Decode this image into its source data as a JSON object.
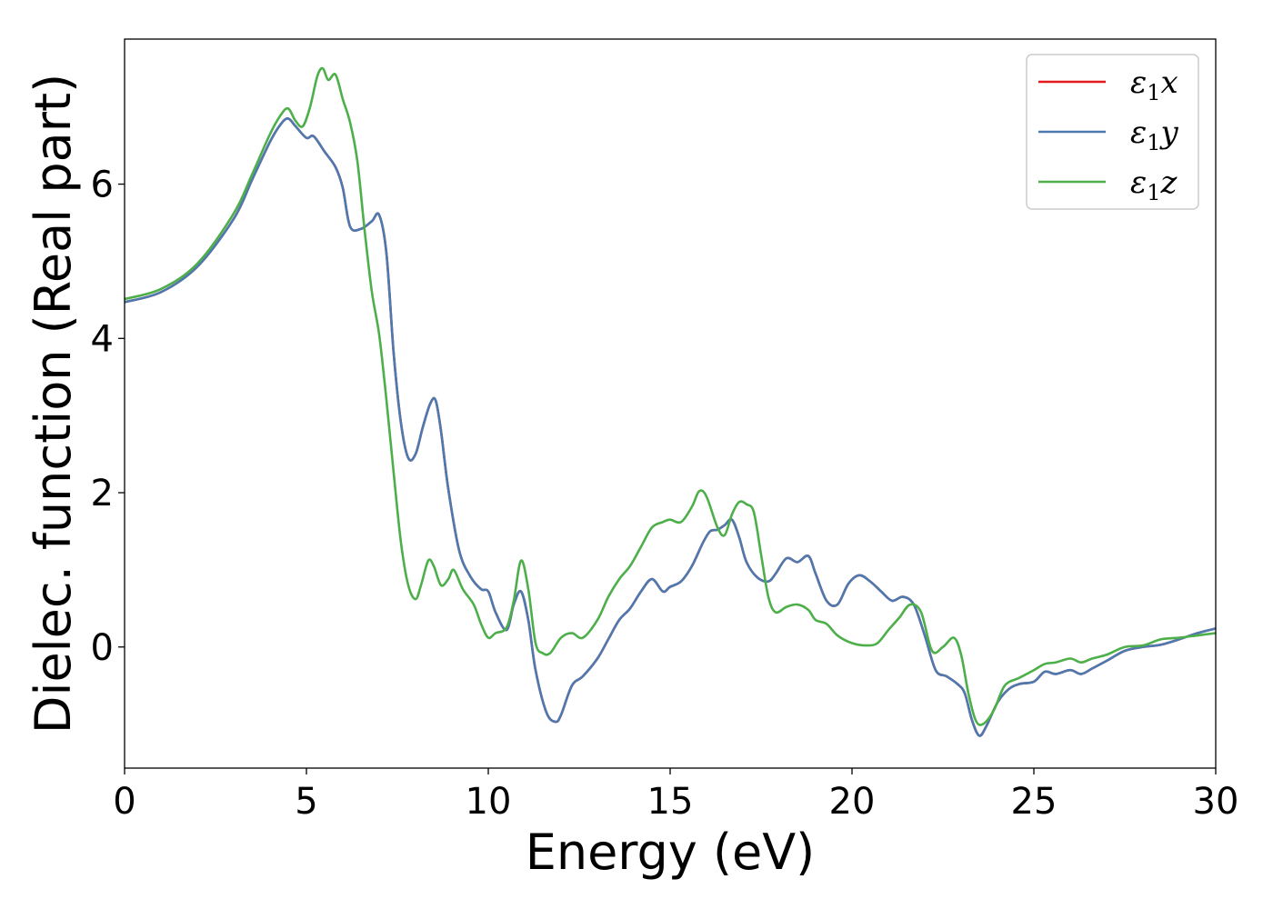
{
  "chart_data": {
    "type": "line",
    "xlabel": "Energy (eV)",
    "ylabel": "Dielec. function (Real part)",
    "xlim": [
      0,
      30
    ],
    "ylim": [
      -1.57,
      7.88
    ],
    "xticks": [
      0,
      5,
      10,
      15,
      20,
      25,
      30
    ],
    "yticks": [
      0,
      2,
      4,
      6
    ],
    "grid": false,
    "legend_position": "top-right",
    "series": [
      {
        "name": "ε1x",
        "legend_symbol": "ε",
        "legend_sub": "1",
        "legend_var": "x",
        "color": "#e41a1c",
        "x": [
          0,
          1,
          2,
          3,
          3.5,
          4,
          4.3,
          4.5,
          4.7,
          5.0,
          5.2,
          5.5,
          5.8,
          6.0,
          6.2,
          6.5,
          6.8,
          7.0,
          7.2,
          7.4,
          7.6,
          7.8,
          8.0,
          8.2,
          8.4,
          8.55,
          8.7,
          8.9,
          9.2,
          9.5,
          9.8,
          10.0,
          10.2,
          10.5,
          10.7,
          10.9,
          11.1,
          11.3,
          11.6,
          11.85,
          12.0,
          12.3,
          12.6,
          13.0,
          13.3,
          13.6,
          13.9,
          14.2,
          14.5,
          14.8,
          15.0,
          15.3,
          15.6,
          15.9,
          16.1,
          16.3,
          16.5,
          16.7,
          16.9,
          17.1,
          17.4,
          17.7,
          17.9,
          18.2,
          18.5,
          18.8,
          19.0,
          19.3,
          19.6,
          19.9,
          20.2,
          20.5,
          20.8,
          21.1,
          21.4,
          21.7,
          22.0,
          22.3,
          22.6,
          22.9,
          23.1,
          23.3,
          23.5,
          23.7,
          24.0,
          24.3,
          24.6,
          25.0,
          25.3,
          25.6,
          26.0,
          26.3,
          26.6,
          27.0,
          27.5,
          28.0,
          28.5,
          29.0,
          29.5,
          30.0
        ],
        "y": [
          4.47,
          4.6,
          4.93,
          5.55,
          6.05,
          6.55,
          6.78,
          6.85,
          6.75,
          6.6,
          6.62,
          6.42,
          6.22,
          5.95,
          5.45,
          5.42,
          5.52,
          5.6,
          5.1,
          3.8,
          2.9,
          2.45,
          2.5,
          2.85,
          3.15,
          3.2,
          2.8,
          2.05,
          1.25,
          0.92,
          0.75,
          0.72,
          0.45,
          0.22,
          0.55,
          0.72,
          0.35,
          -0.3,
          -0.85,
          -0.97,
          -0.88,
          -0.5,
          -0.38,
          -0.15,
          0.1,
          0.35,
          0.5,
          0.72,
          0.88,
          0.72,
          0.78,
          0.85,
          1.05,
          1.35,
          1.5,
          1.52,
          1.58,
          1.65,
          1.42,
          1.1,
          0.9,
          0.85,
          0.95,
          1.15,
          1.1,
          1.18,
          0.95,
          0.6,
          0.55,
          0.82,
          0.93,
          0.85,
          0.72,
          0.6,
          0.65,
          0.55,
          0.15,
          -0.3,
          -0.38,
          -0.48,
          -0.6,
          -0.95,
          -1.15,
          -1.02,
          -0.72,
          -0.55,
          -0.48,
          -0.45,
          -0.32,
          -0.35,
          -0.3,
          -0.35,
          -0.28,
          -0.18,
          -0.05,
          0.0,
          0.03,
          0.1,
          0.18,
          0.24
        ]
      },
      {
        "name": "ε1y",
        "legend_symbol": "ε",
        "legend_sub": "1",
        "legend_var": "y",
        "color": "#4c7ab0",
        "x": [
          0,
          1,
          2,
          3,
          3.5,
          4,
          4.3,
          4.5,
          4.7,
          5.0,
          5.2,
          5.5,
          5.8,
          6.0,
          6.2,
          6.5,
          6.8,
          7.0,
          7.2,
          7.4,
          7.6,
          7.8,
          8.0,
          8.2,
          8.4,
          8.55,
          8.7,
          8.9,
          9.2,
          9.5,
          9.8,
          10.0,
          10.2,
          10.5,
          10.7,
          10.9,
          11.1,
          11.3,
          11.6,
          11.85,
          12.0,
          12.3,
          12.6,
          13.0,
          13.3,
          13.6,
          13.9,
          14.2,
          14.5,
          14.8,
          15.0,
          15.3,
          15.6,
          15.9,
          16.1,
          16.3,
          16.5,
          16.7,
          16.9,
          17.1,
          17.4,
          17.7,
          17.9,
          18.2,
          18.5,
          18.8,
          19.0,
          19.3,
          19.6,
          19.9,
          20.2,
          20.5,
          20.8,
          21.1,
          21.4,
          21.7,
          22.0,
          22.3,
          22.6,
          22.9,
          23.1,
          23.3,
          23.5,
          23.7,
          24.0,
          24.3,
          24.6,
          25.0,
          25.3,
          25.6,
          26.0,
          26.3,
          26.6,
          27.0,
          27.5,
          28.0,
          28.5,
          29.0,
          29.5,
          30.0
        ],
        "y": [
          4.47,
          4.6,
          4.93,
          5.55,
          6.05,
          6.55,
          6.78,
          6.85,
          6.75,
          6.6,
          6.62,
          6.42,
          6.22,
          5.95,
          5.45,
          5.42,
          5.52,
          5.6,
          5.1,
          3.8,
          2.9,
          2.45,
          2.5,
          2.85,
          3.15,
          3.2,
          2.8,
          2.05,
          1.25,
          0.92,
          0.75,
          0.72,
          0.45,
          0.22,
          0.55,
          0.72,
          0.35,
          -0.3,
          -0.85,
          -0.97,
          -0.88,
          -0.5,
          -0.38,
          -0.15,
          0.1,
          0.35,
          0.5,
          0.72,
          0.88,
          0.72,
          0.78,
          0.85,
          1.05,
          1.35,
          1.5,
          1.52,
          1.58,
          1.65,
          1.42,
          1.1,
          0.9,
          0.85,
          0.95,
          1.15,
          1.1,
          1.18,
          0.95,
          0.6,
          0.55,
          0.82,
          0.93,
          0.85,
          0.72,
          0.6,
          0.65,
          0.55,
          0.15,
          -0.3,
          -0.38,
          -0.48,
          -0.6,
          -0.95,
          -1.15,
          -1.02,
          -0.72,
          -0.55,
          -0.48,
          -0.45,
          -0.32,
          -0.35,
          -0.3,
          -0.35,
          -0.28,
          -0.18,
          -0.05,
          0.0,
          0.03,
          0.1,
          0.18,
          0.24
        ]
      },
      {
        "name": "ε1z",
        "legend_symbol": "ε",
        "legend_sub": "1",
        "legend_var": "z",
        "color": "#4daf4a",
        "x": [
          0,
          1,
          2,
          3,
          3.5,
          4,
          4.3,
          4.5,
          4.7,
          4.9,
          5.1,
          5.3,
          5.45,
          5.6,
          5.8,
          6.0,
          6.2,
          6.4,
          6.6,
          6.8,
          7.0,
          7.2,
          7.4,
          7.6,
          7.8,
          8.0,
          8.15,
          8.35,
          8.5,
          8.7,
          8.9,
          9.05,
          9.3,
          9.6,
          9.8,
          10.0,
          10.2,
          10.5,
          10.7,
          10.9,
          11.1,
          11.3,
          11.5,
          11.7,
          12.0,
          12.3,
          12.6,
          13.0,
          13.3,
          13.6,
          13.9,
          14.2,
          14.5,
          14.8,
          15.0,
          15.3,
          15.6,
          15.8,
          16.0,
          16.3,
          16.5,
          16.7,
          16.9,
          17.1,
          17.3,
          17.5,
          17.7,
          17.9,
          18.2,
          18.5,
          18.8,
          19.0,
          19.3,
          19.6,
          20.0,
          20.4,
          20.7,
          21.0,
          21.3,
          21.6,
          21.9,
          22.2,
          22.5,
          22.8,
          23.0,
          23.2,
          23.4,
          23.6,
          23.9,
          24.2,
          24.6,
          25.0,
          25.3,
          25.6,
          26.0,
          26.3,
          26.6,
          27.0,
          27.5,
          28.0,
          28.5,
          29.0,
          29.5,
          30.0
        ],
        "y": [
          4.51,
          4.64,
          4.97,
          5.62,
          6.12,
          6.65,
          6.9,
          6.98,
          6.82,
          6.75,
          7.0,
          7.4,
          7.5,
          7.35,
          7.42,
          7.1,
          6.8,
          6.3,
          5.4,
          4.6,
          4.05,
          3.2,
          2.25,
          1.35,
          0.8,
          0.62,
          0.8,
          1.12,
          1.05,
          0.8,
          0.88,
          1.0,
          0.75,
          0.55,
          0.3,
          0.12,
          0.18,
          0.25,
          0.6,
          1.12,
          0.75,
          0.05,
          -0.08,
          -0.08,
          0.12,
          0.18,
          0.12,
          0.35,
          0.65,
          0.88,
          1.05,
          1.3,
          1.55,
          1.62,
          1.65,
          1.62,
          1.82,
          2.02,
          1.95,
          1.55,
          1.45,
          1.72,
          1.88,
          1.85,
          1.75,
          1.2,
          0.65,
          0.45,
          0.52,
          0.55,
          0.48,
          0.35,
          0.3,
          0.15,
          0.05,
          0.02,
          0.05,
          0.22,
          0.38,
          0.55,
          0.45,
          -0.05,
          0.0,
          0.12,
          -0.1,
          -0.6,
          -0.95,
          -1.0,
          -0.82,
          -0.5,
          -0.4,
          -0.3,
          -0.22,
          -0.2,
          -0.15,
          -0.2,
          -0.15,
          -0.1,
          0.0,
          0.02,
          0.1,
          0.12,
          0.15,
          0.18
        ]
      }
    ]
  }
}
